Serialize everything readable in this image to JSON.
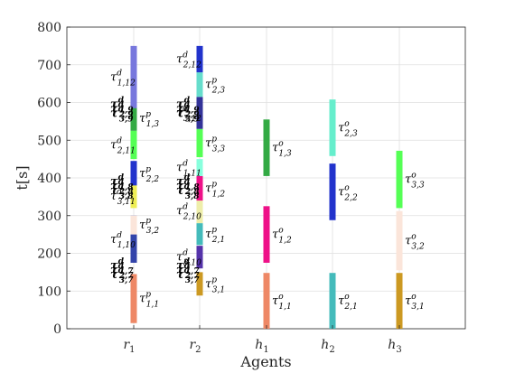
{
  "chart_data": {
    "type": "gantt",
    "xlabel": "Agents",
    "ylabel": "t[s]",
    "ylim": [
      0,
      800
    ],
    "yticks": [
      0,
      100,
      200,
      300,
      400,
      500,
      600,
      700,
      800
    ],
    "categories": [
      "r1",
      "r2",
      "h1",
      "h2",
      "h3"
    ],
    "category_labels": [
      {
        "base": "r",
        "sub": "1"
      },
      {
        "base": "r",
        "sub": "2"
      },
      {
        "base": "h",
        "sub": "1"
      },
      {
        "base": "h",
        "sub": "2"
      },
      {
        "base": "h",
        "sub": "3"
      }
    ],
    "grid": true,
    "tasks": [
      {
        "agent": "r1",
        "start": 15,
        "end": 145,
        "color": "#ee8866",
        "label": {
          "base": "τ",
          "sup": "p",
          "sub": "1,1"
        }
      },
      {
        "agent": "r1",
        "start": 175,
        "end": 300,
        "color": "#3344aa",
        "label": {
          "base": "τ",
          "sup": "d",
          "sub": "1,10"
        }
      },
      {
        "agent": "r1",
        "start": 250,
        "end": 300,
        "color": "#fbe5da",
        "label": {
          "base": "τ",
          "sup": "p",
          "sub": "3,2"
        }
      },
      {
        "agent": "r1",
        "start": 320,
        "end": 385,
        "color": "#eeee55",
        "label": {
          "base": "τ",
          "sup": "d",
          "sub": "3,11"
        }
      },
      {
        "agent": "r1",
        "start": 380,
        "end": 445,
        "color": "#2233cc",
        "label": {
          "base": "τ",
          "sup": "p",
          "sub": "2,2"
        }
      },
      {
        "agent": "r1",
        "start": 450,
        "end": 525,
        "color": "#55ff55",
        "label": {
          "base": "τ",
          "sup": "d",
          "sub": "2,11"
        }
      },
      {
        "agent": "r1",
        "start": 525,
        "end": 590,
        "color": "#33aa44",
        "label": {
          "base": "τ",
          "sup": "p",
          "sub": "1,3"
        }
      },
      {
        "agent": "r1",
        "start": 585,
        "end": 750,
        "color": "#7777dd",
        "label": {
          "base": "τ",
          "sup": "d",
          "sub": "1,12"
        }
      },
      {
        "agent": "r2",
        "start": 88,
        "end": 150,
        "color": "#cc9922",
        "label": {
          "base": "τ",
          "sup": "p",
          "sub": "3,1"
        }
      },
      {
        "agent": "r2",
        "start": 160,
        "end": 220,
        "color": "#5533aa",
        "label": {
          "base": "τ",
          "sup": "d",
          "sub": "3,10"
        }
      },
      {
        "agent": "r2",
        "start": 222,
        "end": 280,
        "color": "#44bbbb",
        "label": {
          "base": "τ",
          "sup": "p",
          "sub": "2,1"
        }
      },
      {
        "agent": "r2",
        "start": 280,
        "end": 345,
        "color": "#eeeeaa",
        "label": {
          "base": "τ",
          "sup": "d",
          "sub": "2,10"
        }
      },
      {
        "agent": "r2",
        "start": 340,
        "end": 405,
        "color": "#ee1188",
        "label": {
          "base": "τ",
          "sup": "p",
          "sub": "1,2"
        }
      },
      {
        "agent": "r2",
        "start": 405,
        "end": 450,
        "color": "#88ffdd",
        "label": {
          "base": "τ",
          "sup": "d",
          "sub": "1,11"
        }
      },
      {
        "agent": "r2",
        "start": 455,
        "end": 530,
        "color": "#55ff55",
        "label": {
          "base": "τ",
          "sup": "p",
          "sub": "3,3"
        }
      },
      {
        "agent": "r2",
        "start": 530,
        "end": 615,
        "color": "#333399",
        "label": {
          "base": "τ",
          "sup": "d",
          "sub": "3,12"
        }
      },
      {
        "agent": "r2",
        "start": 615,
        "end": 680,
        "color": "#66ddcc",
        "label": {
          "base": "τ",
          "sup": "p",
          "sub": "2,3"
        }
      },
      {
        "agent": "r2",
        "start": 680,
        "end": 750,
        "color": "#2233cc",
        "label": {
          "base": "τ",
          "sup": "d",
          "sub": "2,12"
        }
      },
      {
        "agent": "h1",
        "start": 0,
        "end": 148,
        "color": "#ee8866",
        "label": {
          "base": "τ",
          "sup": "o",
          "sub": "1,1"
        }
      },
      {
        "agent": "h1",
        "start": 175,
        "end": 325,
        "color": "#ee1188",
        "label": {
          "base": "τ",
          "sup": "o",
          "sub": "1,2"
        }
      },
      {
        "agent": "h1",
        "start": 405,
        "end": 555,
        "color": "#33aa44",
        "label": {
          "base": "τ",
          "sup": "o",
          "sub": "1,3"
        }
      },
      {
        "agent": "h2",
        "start": 0,
        "end": 148,
        "color": "#44bbbb",
        "label": {
          "base": "τ",
          "sup": "o",
          "sub": "2,1"
        }
      },
      {
        "agent": "h2",
        "start": 288,
        "end": 438,
        "color": "#2233cc",
        "label": {
          "base": "τ",
          "sup": "o",
          "sub": "2,2"
        }
      },
      {
        "agent": "h2",
        "start": 458,
        "end": 608,
        "color": "#66eecc",
        "label": {
          "base": "τ",
          "sup": "o",
          "sub": "2,3"
        }
      },
      {
        "agent": "h3",
        "start": 0,
        "end": 148,
        "color": "#cc9922",
        "label": {
          "base": "τ",
          "sup": "o",
          "sub": "3,1"
        }
      },
      {
        "agent": "h3",
        "start": 155,
        "end": 312,
        "color": "#fbe5da",
        "label": {
          "base": "τ",
          "sup": "o",
          "sub": "3,2"
        }
      },
      {
        "agent": "h3",
        "start": 320,
        "end": 472,
        "color": "#55ff55",
        "label": {
          "base": "τ",
          "sup": "o",
          "sub": "3,3"
        }
      }
    ],
    "overlapping_label_clusters": [
      {
        "agent": "r1",
        "labels": [
          {
            "sup": "d",
            "sub": "1,9"
          },
          {
            "sup": "d",
            "sub": "2,9"
          },
          {
            "sup": "d",
            "sub": "3,9"
          },
          {
            "sup": "d",
            "sub": "1,8"
          },
          {
            "sup": "d",
            "sub": "2,8"
          },
          {
            "sup": "d",
            "sub": "3,8"
          },
          {
            "sup": "d",
            "sub": "1,7"
          },
          {
            "sup": "d",
            "sub": "2,7"
          },
          {
            "sup": "d",
            "sub": "3,7"
          }
        ]
      },
      {
        "agent": "r2",
        "labels": [
          {
            "sup": "d",
            "sub": "1,9"
          },
          {
            "sup": "d",
            "sub": "2,9"
          },
          {
            "sup": "d",
            "sub": "3,9"
          },
          {
            "sup": "d",
            "sub": "1,8"
          },
          {
            "sup": "d",
            "sub": "2,8"
          },
          {
            "sup": "d",
            "sub": "3,8"
          },
          {
            "sup": "d",
            "sub": "1,7"
          },
          {
            "sup": "d",
            "sub": "2,7"
          },
          {
            "sup": "d",
            "sub": "3,7"
          }
        ]
      }
    ]
  }
}
